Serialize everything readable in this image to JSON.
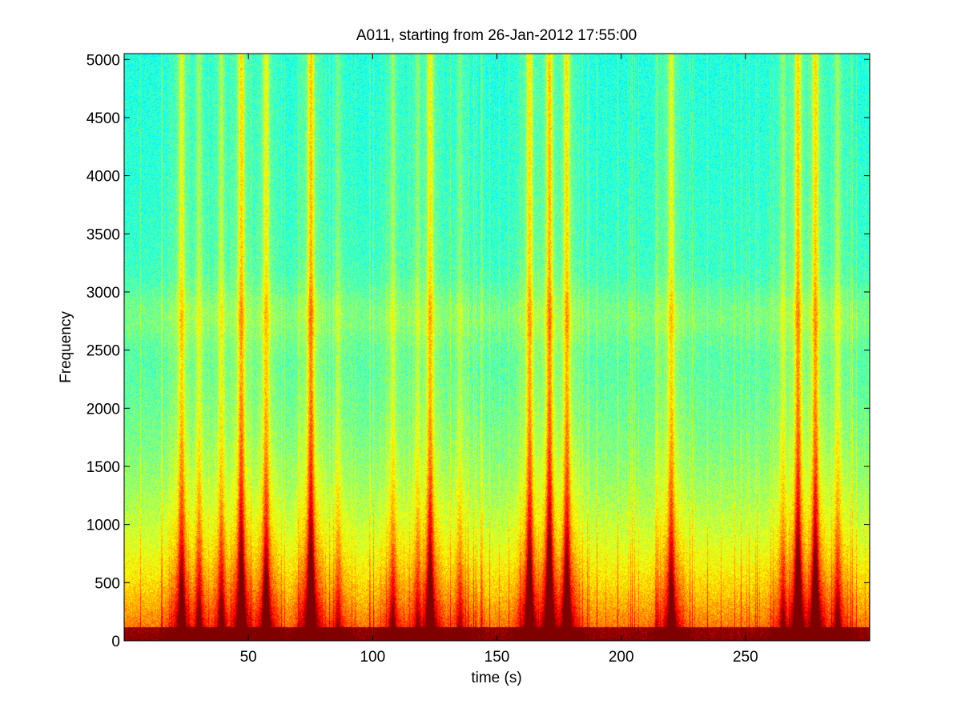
{
  "chart_data": {
    "type": "heatmap",
    "title": "A011, starting from 26-Jan-2012 17:55:00",
    "xlabel": "time (s)",
    "ylabel": "Frequency",
    "xlim": [
      0,
      300
    ],
    "ylim": [
      0,
      5050
    ],
    "xticks": [
      50,
      100,
      150,
      200,
      250
    ],
    "yticks": [
      0,
      500,
      1000,
      1500,
      2000,
      2500,
      3000,
      3500,
      4000,
      4500,
      5000
    ],
    "grid": false,
    "colormap": "jet",
    "colors": {
      "background_level": "#19c6d9",
      "mid_level": "#5ee6a6",
      "high_level": "#f2f21c",
      "peak_level": "#d81a14"
    },
    "broadband_events": [
      {
        "t": 23,
        "strength": 0.7
      },
      {
        "t": 30,
        "strength": 0.45
      },
      {
        "t": 39,
        "strength": 0.5
      },
      {
        "t": 47,
        "strength": 0.9
      },
      {
        "t": 57,
        "strength": 0.75
      },
      {
        "t": 75,
        "strength": 1.0
      },
      {
        "t": 86,
        "strength": 0.3
      },
      {
        "t": 108,
        "strength": 0.4
      },
      {
        "t": 118,
        "strength": 0.35
      },
      {
        "t": 123,
        "strength": 0.8
      },
      {
        "t": 135,
        "strength": 0.3
      },
      {
        "t": 163,
        "strength": 0.85
      },
      {
        "t": 171,
        "strength": 1.0
      },
      {
        "t": 178,
        "strength": 0.85
      },
      {
        "t": 220,
        "strength": 0.7
      },
      {
        "t": 265,
        "strength": 0.4
      },
      {
        "t": 271,
        "strength": 0.95
      },
      {
        "t": 278,
        "strength": 0.9
      },
      {
        "t": 287,
        "strength": 0.45
      }
    ],
    "tonal_band_hz": 2800
  }
}
